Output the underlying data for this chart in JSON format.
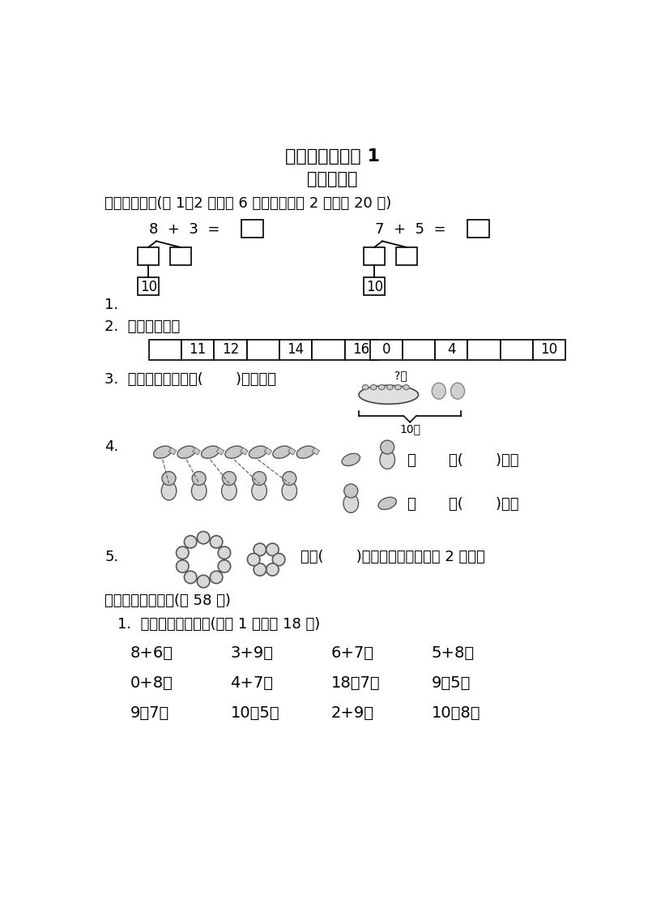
{
  "title1": "方法技能提升卷 1",
  "title2": "计算大闯关",
  "section1_header": "一、我会填。(第 1、2 题每题 6 分，其余每空 2 分，共 20 分)",
  "prob1_left_eq": "8  +  3  =",
  "prob1_right_eq": "7  +  5  =",
  "prob1_bottom_left": "10",
  "prob1_bottom_right": "10",
  "label1": "1.",
  "label2": "2.  按顺序填数。",
  "table1_values": [
    "",
    "11",
    "12",
    "",
    "14",
    "",
    "16"
  ],
  "table2_values": [
    "0",
    "",
    "4",
    "",
    "",
    "10"
  ],
  "label3": "3.  右图中，盘子里有(       )颗草莓。",
  "label3_img_top": "?颗",
  "label3_img_bottom": "10颗",
  "label4": "4.",
  "compare1": "比       多(       )只。",
  "compare2": "比       少(       )只。",
  "label5": "5.",
  "label5_text": "再添(       )颗，珠子的数量就是 2 个十。",
  "section2_header": "二、计算大闯关。(共 58 分)",
  "subsec1_header": "1.  细心算，别粗心！(每题 1 分，共 18 分)",
  "row1": [
    "8+6＝",
    "3+9＝",
    "6+7＝",
    "5+8＝"
  ],
  "row2": [
    "0+8＝",
    "4+7＝",
    "18－7＝",
    "9－5＝"
  ],
  "row3": [
    "9－7＝",
    "10－5＝",
    "2+9＝",
    "10－8＝"
  ],
  "bg_color": "#ffffff",
  "text_color": "#000000"
}
